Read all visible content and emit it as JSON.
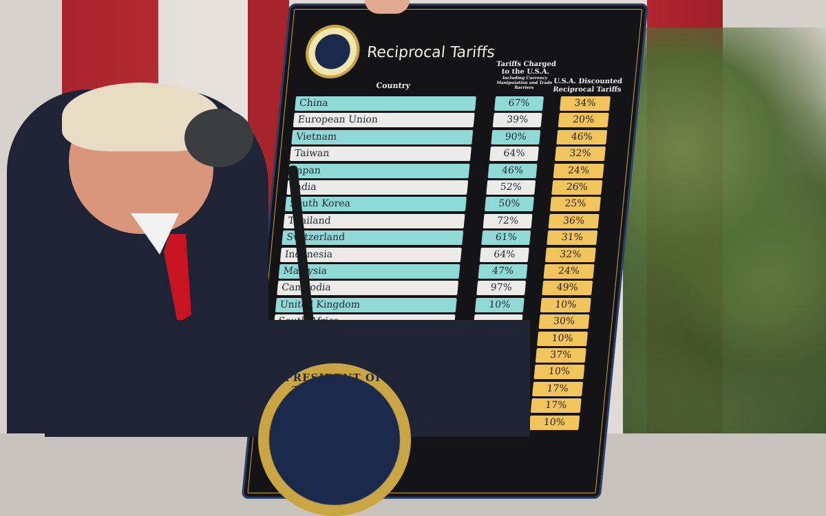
{
  "board": {
    "title": "Reciprocal Tariffs",
    "seal_text": "Seal of the President of the United States",
    "col_country": "Country",
    "col_charged": "Tariffs Charged to the U.S.A.",
    "col_charged_sub": "Including Currency Manipulation and Trade Barriers",
    "col_discounted": "U.S.A. Discounted Reciprocal Tariffs",
    "rows": [
      {
        "country": "China",
        "charged": "67%",
        "discounted": "34%"
      },
      {
        "country": "European Union",
        "charged": "39%",
        "discounted": "20%"
      },
      {
        "country": "Vietnam",
        "charged": "90%",
        "discounted": "46%"
      },
      {
        "country": "Taiwan",
        "charged": "64%",
        "discounted": "32%"
      },
      {
        "country": "Japan",
        "charged": "46%",
        "discounted": "24%"
      },
      {
        "country": "India",
        "charged": "52%",
        "discounted": "26%"
      },
      {
        "country": "South Korea",
        "charged": "50%",
        "discounted": "25%"
      },
      {
        "country": "Thailand",
        "charged": "72%",
        "discounted": "36%"
      },
      {
        "country": "Switzerland",
        "charged": "61%",
        "discounted": "31%"
      },
      {
        "country": "Indonesia",
        "charged": "64%",
        "discounted": "32%"
      },
      {
        "country": "Malaysia",
        "charged": "47%",
        "discounted": "24%"
      },
      {
        "country": "Cambodia",
        "charged": "97%",
        "discounted": "49%"
      },
      {
        "country": "United Kingdom",
        "charged": "10%",
        "discounted": "10%"
      },
      {
        "country": "South Africa",
        "charged": "",
        "discounted": "30%"
      },
      {
        "country": "",
        "charged": "",
        "discounted": "10%"
      },
      {
        "country": "",
        "charged": "",
        "discounted": "37%"
      },
      {
        "country": "",
        "charged": "",
        "discounted": "10%"
      },
      {
        "country": "",
        "charged": "",
        "discounted": "17%"
      },
      {
        "country": "",
        "charged": "",
        "discounted": "17%"
      },
      {
        "country": "",
        "charged": "",
        "discounted": "10%"
      }
    ]
  },
  "podium": {
    "seal_text": "PRESIDENT OF THE UNITED STATES"
  },
  "colors": {
    "country_teal": "#8fd9d6",
    "country_white": "#ecebe8",
    "discounted_gold": "#f2c55c",
    "board": "#141416"
  }
}
